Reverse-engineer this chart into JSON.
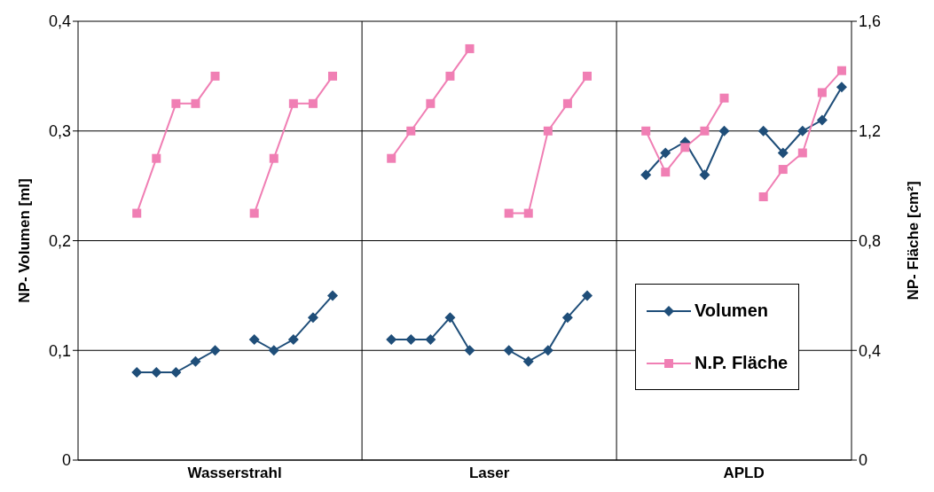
{
  "chart_data": {
    "type": "line",
    "xlabel": null,
    "ylabel": "NP- Volumen [ml]",
    "y2label": "NP- Fläche [cm²]",
    "categories": [
      null,
      null,
      null,
      null,
      null,
      null,
      null,
      "Wasserstrahl",
      null,
      null,
      null,
      null,
      null,
      null,
      null,
      null,
      null,
      null,
      null,
      null,
      "Laser",
      null,
      null,
      null,
      null,
      null,
      null,
      null,
      null,
      null,
      null,
      null,
      null,
      "APLD",
      null,
      null,
      null,
      null,
      null
    ],
    "series": [
      {
        "name": "Volumen",
        "color": "#1f4e79",
        "marker": "diamond",
        "values": [
          null,
          null,
          0.08,
          0.08,
          0.08,
          0.09,
          0.1,
          null,
          0.11,
          0.1,
          0.11,
          0.13,
          0.15,
          null,
          null,
          0.11,
          0.11,
          0.11,
          0.13,
          0.1,
          null,
          0.1,
          0.09,
          0.1,
          0.13,
          0.15,
          null,
          null,
          0.26,
          0.28,
          0.29,
          0.26,
          0.3,
          null,
          0.3,
          0.28,
          0.3,
          0.31,
          0.34
        ]
      },
      {
        "name": "N.P. Fläche",
        "color": "#f07fb4",
        "marker": "square",
        "axis": "y2",
        "values": [
          null,
          null,
          0.9,
          1.1,
          1.3,
          1.3,
          1.4,
          null,
          0.9,
          1.1,
          1.3,
          1.3,
          1.4,
          null,
          null,
          1.1,
          1.2,
          1.3,
          1.4,
          1.5,
          null,
          0.9,
          0.9,
          1.2,
          1.3,
          1.4,
          null,
          null,
          1.2,
          1.05,
          1.14,
          1.2,
          1.32,
          null,
          0.96,
          1.06,
          1.12,
          1.34,
          1.42
        ]
      }
    ],
    "ylim": [
      0,
      0.4
    ],
    "yticks": [
      0,
      {
        "value": 0.1,
        "label": "0,1"
      },
      {
        "value": 0.2,
        "label": "0,2"
      },
      {
        "value": 0.3,
        "label": "0,3"
      },
      {
        "value": 0.4,
        "label": "0,4"
      }
    ],
    "y2lim": [
      0,
      1.6
    ],
    "y2ticks": [
      0,
      {
        "value": 0.4,
        "label": "0,4"
      },
      {
        "value": 0.8,
        "label": "0,8"
      },
      {
        "value": 1.2,
        "label": "1,2"
      },
      {
        "value": 1.6,
        "label": "1,6"
      }
    ],
    "grid": true,
    "legend": "right",
    "line_style": "solid"
  }
}
